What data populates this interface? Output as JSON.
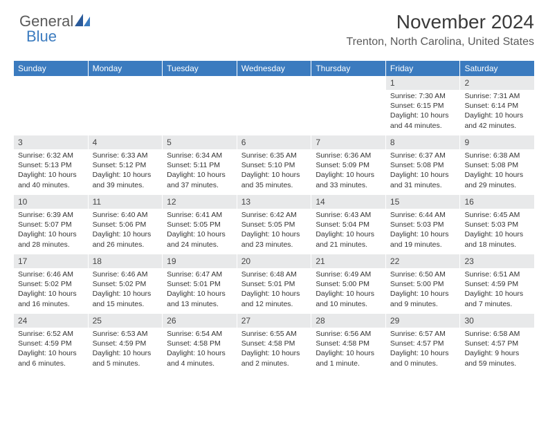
{
  "logo": {
    "part1": "General",
    "part2": "Blue"
  },
  "title": "November 2024",
  "location": "Trenton, North Carolina, United States",
  "colors": {
    "header_bar": "#3b7bbf",
    "day_number_bg": "#e8e9ea",
    "text_dark": "#3a3a3a",
    "text_body": "#333333",
    "logo_gray": "#5a5a5a",
    "logo_blue": "#3b7bbf"
  },
  "weekdays": [
    "Sunday",
    "Monday",
    "Tuesday",
    "Wednesday",
    "Thursday",
    "Friday",
    "Saturday"
  ],
  "weeks": [
    [
      null,
      null,
      null,
      null,
      null,
      {
        "n": "1",
        "sunrise": "Sunrise: 7:30 AM",
        "sunset": "Sunset: 6:15 PM",
        "day1": "Daylight: 10 hours",
        "day2": "and 44 minutes."
      },
      {
        "n": "2",
        "sunrise": "Sunrise: 7:31 AM",
        "sunset": "Sunset: 6:14 PM",
        "day1": "Daylight: 10 hours",
        "day2": "and 42 minutes."
      }
    ],
    [
      {
        "n": "3",
        "sunrise": "Sunrise: 6:32 AM",
        "sunset": "Sunset: 5:13 PM",
        "day1": "Daylight: 10 hours",
        "day2": "and 40 minutes."
      },
      {
        "n": "4",
        "sunrise": "Sunrise: 6:33 AM",
        "sunset": "Sunset: 5:12 PM",
        "day1": "Daylight: 10 hours",
        "day2": "and 39 minutes."
      },
      {
        "n": "5",
        "sunrise": "Sunrise: 6:34 AM",
        "sunset": "Sunset: 5:11 PM",
        "day1": "Daylight: 10 hours",
        "day2": "and 37 minutes."
      },
      {
        "n": "6",
        "sunrise": "Sunrise: 6:35 AM",
        "sunset": "Sunset: 5:10 PM",
        "day1": "Daylight: 10 hours",
        "day2": "and 35 minutes."
      },
      {
        "n": "7",
        "sunrise": "Sunrise: 6:36 AM",
        "sunset": "Sunset: 5:09 PM",
        "day1": "Daylight: 10 hours",
        "day2": "and 33 minutes."
      },
      {
        "n": "8",
        "sunrise": "Sunrise: 6:37 AM",
        "sunset": "Sunset: 5:08 PM",
        "day1": "Daylight: 10 hours",
        "day2": "and 31 minutes."
      },
      {
        "n": "9",
        "sunrise": "Sunrise: 6:38 AM",
        "sunset": "Sunset: 5:08 PM",
        "day1": "Daylight: 10 hours",
        "day2": "and 29 minutes."
      }
    ],
    [
      {
        "n": "10",
        "sunrise": "Sunrise: 6:39 AM",
        "sunset": "Sunset: 5:07 PM",
        "day1": "Daylight: 10 hours",
        "day2": "and 28 minutes."
      },
      {
        "n": "11",
        "sunrise": "Sunrise: 6:40 AM",
        "sunset": "Sunset: 5:06 PM",
        "day1": "Daylight: 10 hours",
        "day2": "and 26 minutes."
      },
      {
        "n": "12",
        "sunrise": "Sunrise: 6:41 AM",
        "sunset": "Sunset: 5:05 PM",
        "day1": "Daylight: 10 hours",
        "day2": "and 24 minutes."
      },
      {
        "n": "13",
        "sunrise": "Sunrise: 6:42 AM",
        "sunset": "Sunset: 5:05 PM",
        "day1": "Daylight: 10 hours",
        "day2": "and 23 minutes."
      },
      {
        "n": "14",
        "sunrise": "Sunrise: 6:43 AM",
        "sunset": "Sunset: 5:04 PM",
        "day1": "Daylight: 10 hours",
        "day2": "and 21 minutes."
      },
      {
        "n": "15",
        "sunrise": "Sunrise: 6:44 AM",
        "sunset": "Sunset: 5:03 PM",
        "day1": "Daylight: 10 hours",
        "day2": "and 19 minutes."
      },
      {
        "n": "16",
        "sunrise": "Sunrise: 6:45 AM",
        "sunset": "Sunset: 5:03 PM",
        "day1": "Daylight: 10 hours",
        "day2": "and 18 minutes."
      }
    ],
    [
      {
        "n": "17",
        "sunrise": "Sunrise: 6:46 AM",
        "sunset": "Sunset: 5:02 PM",
        "day1": "Daylight: 10 hours",
        "day2": "and 16 minutes."
      },
      {
        "n": "18",
        "sunrise": "Sunrise: 6:46 AM",
        "sunset": "Sunset: 5:02 PM",
        "day1": "Daylight: 10 hours",
        "day2": "and 15 minutes."
      },
      {
        "n": "19",
        "sunrise": "Sunrise: 6:47 AM",
        "sunset": "Sunset: 5:01 PM",
        "day1": "Daylight: 10 hours",
        "day2": "and 13 minutes."
      },
      {
        "n": "20",
        "sunrise": "Sunrise: 6:48 AM",
        "sunset": "Sunset: 5:01 PM",
        "day1": "Daylight: 10 hours",
        "day2": "and 12 minutes."
      },
      {
        "n": "21",
        "sunrise": "Sunrise: 6:49 AM",
        "sunset": "Sunset: 5:00 PM",
        "day1": "Daylight: 10 hours",
        "day2": "and 10 minutes."
      },
      {
        "n": "22",
        "sunrise": "Sunrise: 6:50 AM",
        "sunset": "Sunset: 5:00 PM",
        "day1": "Daylight: 10 hours",
        "day2": "and 9 minutes."
      },
      {
        "n": "23",
        "sunrise": "Sunrise: 6:51 AM",
        "sunset": "Sunset: 4:59 PM",
        "day1": "Daylight: 10 hours",
        "day2": "and 7 minutes."
      }
    ],
    [
      {
        "n": "24",
        "sunrise": "Sunrise: 6:52 AM",
        "sunset": "Sunset: 4:59 PM",
        "day1": "Daylight: 10 hours",
        "day2": "and 6 minutes."
      },
      {
        "n": "25",
        "sunrise": "Sunrise: 6:53 AM",
        "sunset": "Sunset: 4:59 PM",
        "day1": "Daylight: 10 hours",
        "day2": "and 5 minutes."
      },
      {
        "n": "26",
        "sunrise": "Sunrise: 6:54 AM",
        "sunset": "Sunset: 4:58 PM",
        "day1": "Daylight: 10 hours",
        "day2": "and 4 minutes."
      },
      {
        "n": "27",
        "sunrise": "Sunrise: 6:55 AM",
        "sunset": "Sunset: 4:58 PM",
        "day1": "Daylight: 10 hours",
        "day2": "and 2 minutes."
      },
      {
        "n": "28",
        "sunrise": "Sunrise: 6:56 AM",
        "sunset": "Sunset: 4:58 PM",
        "day1": "Daylight: 10 hours",
        "day2": "and 1 minute."
      },
      {
        "n": "29",
        "sunrise": "Sunrise: 6:57 AM",
        "sunset": "Sunset: 4:57 PM",
        "day1": "Daylight: 10 hours",
        "day2": "and 0 minutes."
      },
      {
        "n": "30",
        "sunrise": "Sunrise: 6:58 AM",
        "sunset": "Sunset: 4:57 PM",
        "day1": "Daylight: 9 hours",
        "day2": "and 59 minutes."
      }
    ]
  ]
}
